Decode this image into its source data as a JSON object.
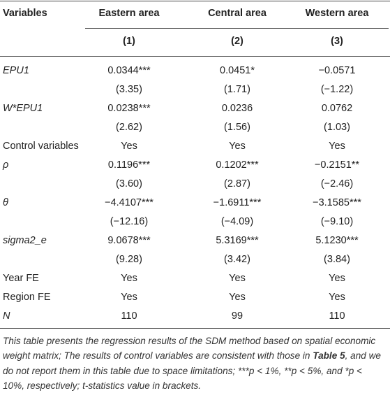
{
  "header": {
    "columns": [
      "Variables",
      "Eastern area",
      "Central area",
      "Western area"
    ],
    "numbers": [
      "(1)",
      "(2)",
      "(3)"
    ]
  },
  "table": {
    "rows": [
      {
        "label": "EPU1",
        "values": [
          "0.0344***",
          "0.0451*",
          "−0.0571"
        ]
      },
      {
        "values": [
          "(3.35)",
          "(1.71)",
          "(−1.22)"
        ]
      },
      {
        "label": "W*EPU1",
        "values": [
          "0.0238***",
          "0.0236",
          "0.0762"
        ]
      },
      {
        "values": [
          "(2.62)",
          "(1.56)",
          "(1.03)"
        ]
      },
      {
        "label": "Control variables",
        "values": [
          "Yes",
          "Yes",
          "Yes"
        ]
      },
      {
        "label": "ρ",
        "values": [
          "0.1196***",
          "0.1202***",
          "−0.2151**"
        ]
      },
      {
        "values": [
          "(3.60)",
          "(2.87)",
          "(−2.46)"
        ]
      },
      {
        "label": "θ",
        "values": [
          "−4.4107***",
          "−1.6911***",
          "−3.1585***"
        ]
      },
      {
        "values": [
          "(−12.16)",
          "(−4.09)",
          "(−9.10)"
        ]
      },
      {
        "label": "sigma2_e",
        "values": [
          "9.0678***",
          "5.3169***",
          "5.1230***"
        ]
      },
      {
        "values": [
          "(9.28)",
          "(3.42)",
          "(3.84)"
        ]
      },
      {
        "label": "Year FE",
        "values": [
          "Yes",
          "Yes",
          "Yes"
        ]
      },
      {
        "label": "Region FE",
        "values": [
          "Yes",
          "Yes",
          "Yes"
        ]
      },
      {
        "label": "N",
        "values": [
          "110",
          "99",
          "110"
        ]
      }
    ]
  },
  "footnote": [
    "This table presents the regression results of the SDM method based on spatial economic weight matrix; The results of control variables are consistent with those in ",
    "Table 5",
    ", and we do not report them in this table due to space limitations; ***p < 1%, **p < 5%, and *p < 10%, respectively; t-statistics value in brackets."
  ]
}
